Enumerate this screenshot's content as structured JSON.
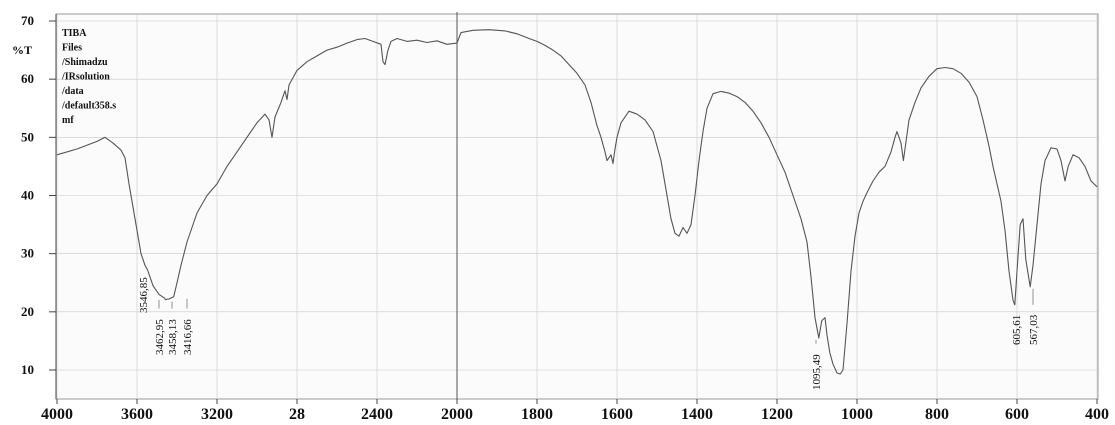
{
  "chart_data": {
    "type": "line",
    "title": "",
    "xlabel": "",
    "ylabel": "%T",
    "file_info": [
      "TIBA",
      "Files",
      "/Shimadzu",
      "/IRsolution",
      "/data",
      "/default358.s",
      "mf"
    ],
    "x_ticks": [
      "4000",
      "3600",
      "3200",
      "28",
      "2400",
      "2000",
      "1800",
      "1600",
      "1400",
      "1200",
      "1000",
      "800",
      "600",
      "400"
    ],
    "y_ticks": [
      "70",
      "60",
      "50",
      "40",
      "30",
      "20",
      "10"
    ],
    "xlim": [
      4000,
      400
    ],
    "ylim": [
      7,
      71
    ],
    "x_axis_break": 2000,
    "grid": true,
    "series": [
      {
        "points": [
          [
            4000,
            47
          ],
          [
            3900,
            48
          ],
          [
            3800,
            49.3
          ],
          [
            3760,
            50
          ],
          [
            3720,
            49
          ],
          [
            3680,
            47.8
          ],
          [
            3660,
            46.5
          ],
          [
            3640,
            42
          ],
          [
            3620,
            38
          ],
          [
            3600,
            34
          ],
          [
            3580,
            30
          ],
          [
            3560,
            28
          ],
          [
            3546.85,
            27.2
          ],
          [
            3520,
            24.5
          ],
          [
            3490,
            23
          ],
          [
            3462.95,
            22.4
          ],
          [
            3458.13,
            22.1
          ],
          [
            3440,
            22.2
          ],
          [
            3416.66,
            22.6
          ],
          [
            3400,
            25
          ],
          [
            3380,
            28
          ],
          [
            3350,
            32
          ],
          [
            3300,
            37
          ],
          [
            3250,
            40
          ],
          [
            3200,
            42
          ],
          [
            3150,
            45
          ],
          [
            3100,
            47.5
          ],
          [
            3050,
            50
          ],
          [
            3000,
            52.5
          ],
          [
            2960,
            54
          ],
          [
            2940,
            53
          ],
          [
            2925,
            50
          ],
          [
            2910,
            53.5
          ],
          [
            2880,
            56
          ],
          [
            2860,
            58
          ],
          [
            2850,
            56.5
          ],
          [
            2840,
            59
          ],
          [
            2800,
            61.5
          ],
          [
            2750,
            63
          ],
          [
            2700,
            64
          ],
          [
            2650,
            65
          ],
          [
            2600,
            65.5
          ],
          [
            2550,
            66.2
          ],
          [
            2500,
            66.8
          ],
          [
            2460,
            67
          ],
          [
            2420,
            66.5
          ],
          [
            2380,
            66
          ],
          [
            2370,
            63
          ],
          [
            2360,
            62.5
          ],
          [
            2345,
            65
          ],
          [
            2330,
            66.5
          ],
          [
            2300,
            67
          ],
          [
            2250,
            66.5
          ],
          [
            2200,
            66.7
          ],
          [
            2150,
            66.3
          ],
          [
            2100,
            66.6
          ],
          [
            2050,
            66
          ],
          [
            2000,
            66.2
          ],
          [
            1990,
            68
          ],
          [
            1960,
            68.4
          ],
          [
            1920,
            68.5
          ],
          [
            1880,
            68.3
          ],
          [
            1850,
            67.8
          ],
          [
            1820,
            67
          ],
          [
            1800,
            66.5
          ],
          [
            1780,
            65.8
          ],
          [
            1760,
            65
          ],
          [
            1740,
            64
          ],
          [
            1720,
            62.5
          ],
          [
            1700,
            61
          ],
          [
            1680,
            59
          ],
          [
            1665,
            56
          ],
          [
            1650,
            52
          ],
          [
            1640,
            50
          ],
          [
            1630,
            47.5
          ],
          [
            1625,
            46
          ],
          [
            1615,
            47
          ],
          [
            1610,
            45.5
          ],
          [
            1605,
            48
          ],
          [
            1600,
            50
          ],
          [
            1590,
            52.5
          ],
          [
            1570,
            54.5
          ],
          [
            1550,
            54
          ],
          [
            1530,
            53
          ],
          [
            1510,
            51
          ],
          [
            1490,
            46
          ],
          [
            1475,
            40
          ],
          [
            1465,
            36
          ],
          [
            1455,
            33.5
          ],
          [
            1445,
            33
          ],
          [
            1435,
            34.5
          ],
          [
            1425,
            33.5
          ],
          [
            1415,
            35
          ],
          [
            1405,
            40
          ],
          [
            1395,
            46
          ],
          [
            1385,
            51
          ],
          [
            1375,
            55
          ],
          [
            1360,
            57.5
          ],
          [
            1340,
            57.9
          ],
          [
            1320,
            57.6
          ],
          [
            1300,
            57
          ],
          [
            1280,
            56
          ],
          [
            1260,
            54.5
          ],
          [
            1240,
            52.5
          ],
          [
            1220,
            50
          ],
          [
            1200,
            47
          ],
          [
            1180,
            44
          ],
          [
            1160,
            40
          ],
          [
            1140,
            36
          ],
          [
            1125,
            32
          ],
          [
            1115,
            26
          ],
          [
            1105,
            19
          ],
          [
            1095.49,
            15.5
          ],
          [
            1088,
            18.5
          ],
          [
            1080,
            19
          ],
          [
            1075,
            16
          ],
          [
            1068,
            13
          ],
          [
            1060,
            11
          ],
          [
            1050,
            9.5
          ],
          [
            1042,
            9.3
          ],
          [
            1035,
            10
          ],
          [
            1025,
            18
          ],
          [
            1015,
            27
          ],
          [
            1005,
            33
          ],
          [
            995,
            37
          ],
          [
            985,
            39
          ],
          [
            975,
            40.5
          ],
          [
            960,
            42.5
          ],
          [
            945,
            44
          ],
          [
            930,
            45
          ],
          [
            915,
            47.5
          ],
          [
            905,
            50
          ],
          [
            900,
            51
          ],
          [
            890,
            49
          ],
          [
            884,
            46
          ],
          [
            878,
            49
          ],
          [
            870,
            53
          ],
          [
            855,
            56
          ],
          [
            840,
            58.5
          ],
          [
            820,
            60.5
          ],
          [
            800,
            61.8
          ],
          [
            780,
            62
          ],
          [
            760,
            61.8
          ],
          [
            740,
            61
          ],
          [
            720,
            59.5
          ],
          [
            700,
            57
          ],
          [
            685,
            53
          ],
          [
            670,
            48.5
          ],
          [
            660,
            45
          ],
          [
            650,
            42
          ],
          [
            640,
            39
          ],
          [
            630,
            34
          ],
          [
            620,
            27
          ],
          [
            610,
            22
          ],
          [
            605.61,
            21.2
          ],
          [
            600,
            27
          ],
          [
            592,
            35
          ],
          [
            585,
            36
          ],
          [
            578,
            29
          ],
          [
            567.03,
            24.3
          ],
          [
            560,
            28
          ],
          [
            550,
            35
          ],
          [
            540,
            42
          ],
          [
            530,
            46
          ],
          [
            515,
            48.2
          ],
          [
            500,
            48
          ],
          [
            490,
            46
          ],
          [
            480,
            42.5
          ],
          [
            472,
            45
          ],
          [
            460,
            47
          ],
          [
            445,
            46.5
          ],
          [
            430,
            45
          ],
          [
            415,
            42.5
          ],
          [
            400,
            41.5
          ]
        ]
      }
    ],
    "peak_labels": [
      {
        "x": 3546.85,
        "label": "3546,85"
      },
      {
        "x": 3462.95,
        "label": "3462,95"
      },
      {
        "x": 3458.13,
        "label": "3458,13"
      },
      {
        "x": 3416.66,
        "label": "3416,66"
      },
      {
        "x": 1095.49,
        "label": "1095,49"
      },
      {
        "x": 605.61,
        "label": "605,61"
      },
      {
        "x": 567.03,
        "label": "567,03"
      }
    ]
  }
}
